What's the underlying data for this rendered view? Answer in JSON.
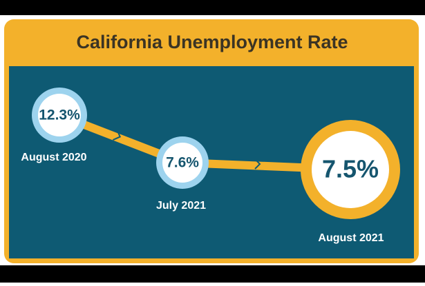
{
  "title": "California Unemployment Rate",
  "points": [
    {
      "value": "12.3%",
      "label": "August 2020"
    },
    {
      "value": "7.6%",
      "label": "July 2021"
    },
    {
      "value": "7.5%",
      "label": "August 2021"
    }
  ]
}
